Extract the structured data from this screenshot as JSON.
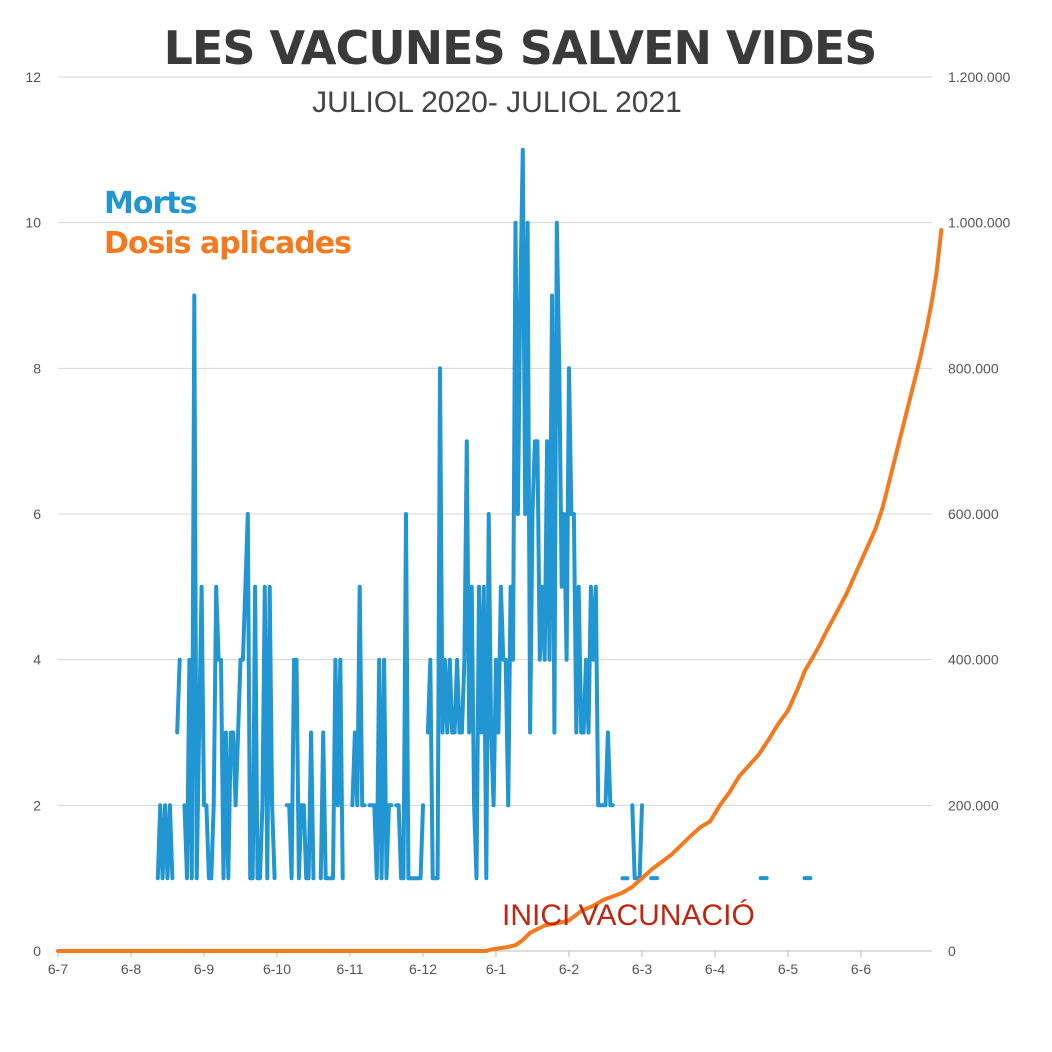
{
  "chart_data": {
    "type": "line",
    "title": "LES VACUNES SALVEN VIDES",
    "subtitle": "JULIOL 2020- JULIOL 2021",
    "x_tick_labels": [
      "6-7",
      "6-8",
      "6-9",
      "6-10",
      "6-11",
      "6-12",
      "6-1",
      "6-2",
      "6-3",
      "6-4",
      "6-5",
      "6-6"
    ],
    "x_range_days": [
      0,
      360
    ],
    "grid": true,
    "legend_placement": "top-left",
    "left_axis": {
      "ylim": [
        0,
        12
      ],
      "ticks": [
        "0",
        "2",
        "4",
        "6",
        "8",
        "10",
        "12"
      ]
    },
    "right_axis": {
      "ylim": [
        0,
        1200000
      ],
      "ticks": [
        "0",
        "200.000",
        "400.000",
        "600.000",
        "800.000",
        "1.000.000",
        "1.200.000"
      ]
    },
    "annotation": {
      "text": "INICI VACUNACIÓ",
      "color": "#c0250f"
    },
    "series": [
      {
        "name": "Morts",
        "axis": "left",
        "color": "#2196d3",
        "points": [
          [
            41,
            1
          ],
          [
            42,
            2
          ],
          [
            43,
            1
          ],
          [
            44,
            2
          ],
          [
            45,
            1
          ],
          [
            46,
            2
          ],
          [
            47,
            1
          ],
          [
            48,
            null
          ],
          [
            49,
            3
          ],
          [
            50,
            4
          ],
          [
            51,
            null
          ],
          [
            52,
            2
          ],
          [
            53,
            1
          ],
          [
            54,
            4
          ],
          [
            55,
            1
          ],
          [
            56,
            9
          ],
          [
            57,
            1
          ],
          [
            58,
            3
          ],
          [
            59,
            5
          ],
          [
            60,
            2
          ],
          [
            61,
            2
          ],
          [
            62,
            1
          ],
          [
            63,
            1
          ],
          [
            64,
            2
          ],
          [
            65,
            5
          ],
          [
            66,
            4
          ],
          [
            67,
            4
          ],
          [
            68,
            1
          ],
          [
            69,
            3
          ],
          [
            70,
            1
          ],
          [
            71,
            3
          ],
          [
            72,
            3
          ],
          [
            73,
            2
          ],
          [
            74,
            3
          ],
          [
            75,
            4
          ],
          [
            76,
            4
          ],
          [
            77,
            5
          ],
          [
            78,
            6
          ],
          [
            79,
            1
          ],
          [
            80,
            1
          ],
          [
            81,
            5
          ],
          [
            82,
            1
          ],
          [
            83,
            1
          ],
          [
            84,
            2
          ],
          [
            85,
            5
          ],
          [
            86,
            1
          ],
          [
            87,
            5
          ],
          [
            88,
            2
          ],
          [
            89,
            1
          ],
          [
            90,
            null
          ],
          [
            94,
            2
          ],
          [
            95,
            2
          ],
          [
            96,
            1
          ],
          [
            97,
            4
          ],
          [
            98,
            4
          ],
          [
            99,
            1
          ],
          [
            100,
            2
          ],
          [
            101,
            2
          ],
          [
            102,
            1
          ],
          [
            103,
            1
          ],
          [
            104,
            3
          ],
          [
            105,
            1
          ],
          [
            106,
            null
          ],
          [
            108,
            1
          ],
          [
            109,
            3
          ],
          [
            110,
            1
          ],
          [
            111,
            1
          ],
          [
            112,
            1
          ],
          [
            113,
            1
          ],
          [
            114,
            4
          ],
          [
            115,
            2
          ],
          [
            116,
            4
          ],
          [
            117,
            1
          ],
          [
            118,
            null
          ],
          [
            121,
            2
          ],
          [
            122,
            3
          ],
          [
            123,
            2
          ],
          [
            124,
            5
          ],
          [
            125,
            2
          ],
          [
            126,
            2
          ],
          [
            127,
            null
          ],
          [
            128,
            2
          ],
          [
            130,
            2
          ],
          [
            131,
            1
          ],
          [
            132,
            4
          ],
          [
            133,
            1
          ],
          [
            134,
            4
          ],
          [
            135,
            1
          ],
          [
            136,
            2
          ],
          [
            137,
            2
          ],
          [
            138,
            null
          ],
          [
            139,
            2
          ],
          [
            140,
            2
          ],
          [
            141,
            1
          ],
          [
            142,
            1
          ],
          [
            143,
            6
          ],
          [
            144,
            1
          ],
          [
            145,
            1
          ],
          [
            146,
            1
          ],
          [
            147,
            1
          ],
          [
            148,
            1
          ],
          [
            149,
            1
          ],
          [
            150,
            2
          ],
          [
            151,
            null
          ],
          [
            152,
            3
          ],
          [
            153,
            4
          ],
          [
            154,
            1
          ],
          [
            155,
            1
          ],
          [
            156,
            1
          ],
          [
            157,
            8
          ],
          [
            158,
            3
          ],
          [
            159,
            4
          ],
          [
            160,
            3
          ],
          [
            161,
            4
          ],
          [
            162,
            3
          ],
          [
            163,
            3
          ],
          [
            164,
            4
          ],
          [
            165,
            3
          ],
          [
            166,
            3
          ],
          [
            167,
            4
          ],
          [
            168,
            7
          ],
          [
            169,
            3
          ],
          [
            170,
            5
          ],
          [
            171,
            2
          ],
          [
            172,
            1
          ],
          [
            173,
            5
          ],
          [
            174,
            3
          ],
          [
            175,
            5
          ],
          [
            176,
            1
          ],
          [
            177,
            6
          ],
          [
            178,
            3
          ],
          [
            179,
            2
          ],
          [
            180,
            4
          ],
          [
            181,
            3
          ],
          [
            182,
            5
          ],
          [
            183,
            4
          ],
          [
            184,
            4
          ],
          [
            185,
            2
          ],
          [
            186,
            5
          ],
          [
            187,
            4
          ],
          [
            188,
            10
          ],
          [
            189,
            6
          ],
          [
            190,
            9
          ],
          [
            191,
            11
          ],
          [
            192,
            6
          ],
          [
            193,
            10
          ],
          [
            194,
            3
          ],
          [
            195,
            6
          ],
          [
            196,
            7
          ],
          [
            197,
            7
          ],
          [
            198,
            4
          ],
          [
            199,
            5
          ],
          [
            200,
            4
          ],
          [
            201,
            7
          ],
          [
            202,
            4
          ],
          [
            203,
            9
          ],
          [
            204,
            3
          ],
          [
            205,
            10
          ],
          [
            206,
            8
          ],
          [
            207,
            5
          ],
          [
            208,
            6
          ],
          [
            209,
            4
          ],
          [
            210,
            8
          ],
          [
            211,
            6
          ],
          [
            212,
            6
          ],
          [
            213,
            3
          ],
          [
            214,
            5
          ],
          [
            215,
            3
          ],
          [
            216,
            3
          ],
          [
            217,
            4
          ],
          [
            218,
            3
          ],
          [
            219,
            5
          ],
          [
            220,
            4
          ],
          [
            221,
            5
          ],
          [
            222,
            2
          ],
          [
            223,
            2
          ],
          [
            224,
            2
          ],
          [
            225,
            2
          ],
          [
            226,
            3
          ],
          [
            227,
            2
          ],
          [
            228,
            2
          ],
          [
            229,
            null
          ],
          [
            232,
            1
          ],
          [
            234,
            1
          ],
          [
            235,
            null
          ],
          [
            236,
            2
          ],
          [
            237,
            1
          ],
          [
            238,
            1
          ],
          [
            239,
            1
          ],
          [
            240,
            2
          ],
          [
            241,
            null
          ],
          [
            245,
            1
          ],
          [
            246,
            null
          ],
          [
            290,
            1
          ],
          [
            291,
            null
          ],
          [
            308,
            1
          ]
        ]
      },
      {
        "name": "Dosis aplicades",
        "axis": "right",
        "color": "#f47a20",
        "points": [
          [
            0,
            0
          ],
          [
            176,
            0
          ],
          [
            178,
            2000
          ],
          [
            184,
            5000
          ],
          [
            188,
            8000
          ],
          [
            191,
            15000
          ],
          [
            194,
            25000
          ],
          [
            197,
            30000
          ],
          [
            200,
            35000
          ],
          [
            205,
            38000
          ],
          [
            210,
            42000
          ],
          [
            215,
            55000
          ],
          [
            220,
            62000
          ],
          [
            224,
            70000
          ],
          [
            228,
            75000
          ],
          [
            232,
            80000
          ],
          [
            236,
            88000
          ],
          [
            240,
            100000
          ],
          [
            244,
            112000
          ],
          [
            248,
            122000
          ],
          [
            252,
            132000
          ],
          [
            256,
            145000
          ],
          [
            260,
            158000
          ],
          [
            264,
            170000
          ],
          [
            268,
            178000
          ],
          [
            272,
            200000
          ],
          [
            276,
            218000
          ],
          [
            280,
            240000
          ],
          [
            284,
            255000
          ],
          [
            288,
            270000
          ],
          [
            292,
            290000
          ],
          [
            296,
            312000
          ],
          [
            300,
            330000
          ],
          [
            304,
            360000
          ],
          [
            307,
            385000
          ],
          [
            310,
            402000
          ],
          [
            313,
            420000
          ],
          [
            316,
            440000
          ],
          [
            320,
            465000
          ],
          [
            324,
            490000
          ],
          [
            328,
            520000
          ],
          [
            332,
            550000
          ],
          [
            336,
            580000
          ],
          [
            339,
            610000
          ],
          [
            342,
            650000
          ],
          [
            345,
            690000
          ],
          [
            348,
            730000
          ],
          [
            351,
            770000
          ],
          [
            354,
            810000
          ],
          [
            357,
            855000
          ],
          [
            359,
            890000
          ],
          [
            361,
            930000
          ],
          [
            362,
            960000
          ],
          [
            363,
            990000
          ]
        ]
      }
    ]
  }
}
